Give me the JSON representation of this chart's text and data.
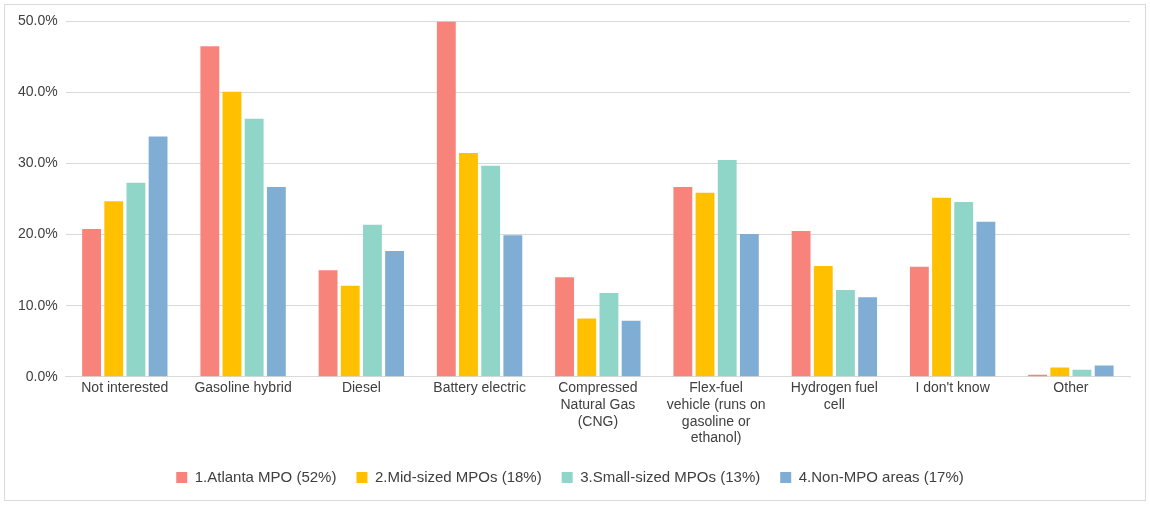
{
  "chart_data": {
    "type": "bar",
    "categories": [
      "Not interested",
      "Gasoline hybrid",
      "Diesel",
      "Battery electric",
      "Compressed Natural Gas (CNG)",
      "Flex-fuel vehicle (runs on gasoline or ethanol)",
      "Hydrogen fuel cell",
      "I don't know",
      "Other"
    ],
    "series": [
      {
        "name": "1.Atlanta MPO (52%)",
        "color": "#f8837a",
        "values": [
          20.8,
          46.5,
          15.0,
          50.0,
          14.0,
          26.7,
          20.5,
          15.5,
          0.3
        ]
      },
      {
        "name": "2.Mid-sized MPOs (18%)",
        "color": "#ffc000",
        "values": [
          24.7,
          40.1,
          12.8,
          31.5,
          8.2,
          25.9,
          15.6,
          25.2,
          1.3
        ]
      },
      {
        "name": "3.Small-sized MPOs (13%)",
        "color": "#8fd5c8",
        "values": [
          27.3,
          36.3,
          21.4,
          29.7,
          11.8,
          30.5,
          12.2,
          24.6,
          1.0
        ]
      },
      {
        "name": "4.Non-MPO areas (17%)",
        "color": "#7fadd3",
        "values": [
          33.8,
          26.7,
          17.7,
          19.9,
          7.9,
          20.1,
          11.2,
          21.8,
          1.6
        ]
      }
    ],
    "ylim": [
      0,
      50
    ],
    "yticks": [
      {
        "value": 0,
        "label": "0.0%"
      },
      {
        "value": 10,
        "label": "10.0%"
      },
      {
        "value": 20,
        "label": "20.0%"
      },
      {
        "value": 30,
        "label": "30.0%"
      },
      {
        "value": 40,
        "label": "40.0%"
      },
      {
        "value": 50,
        "label": "50.0%"
      }
    ],
    "grid": "y",
    "legend": "bottom"
  }
}
